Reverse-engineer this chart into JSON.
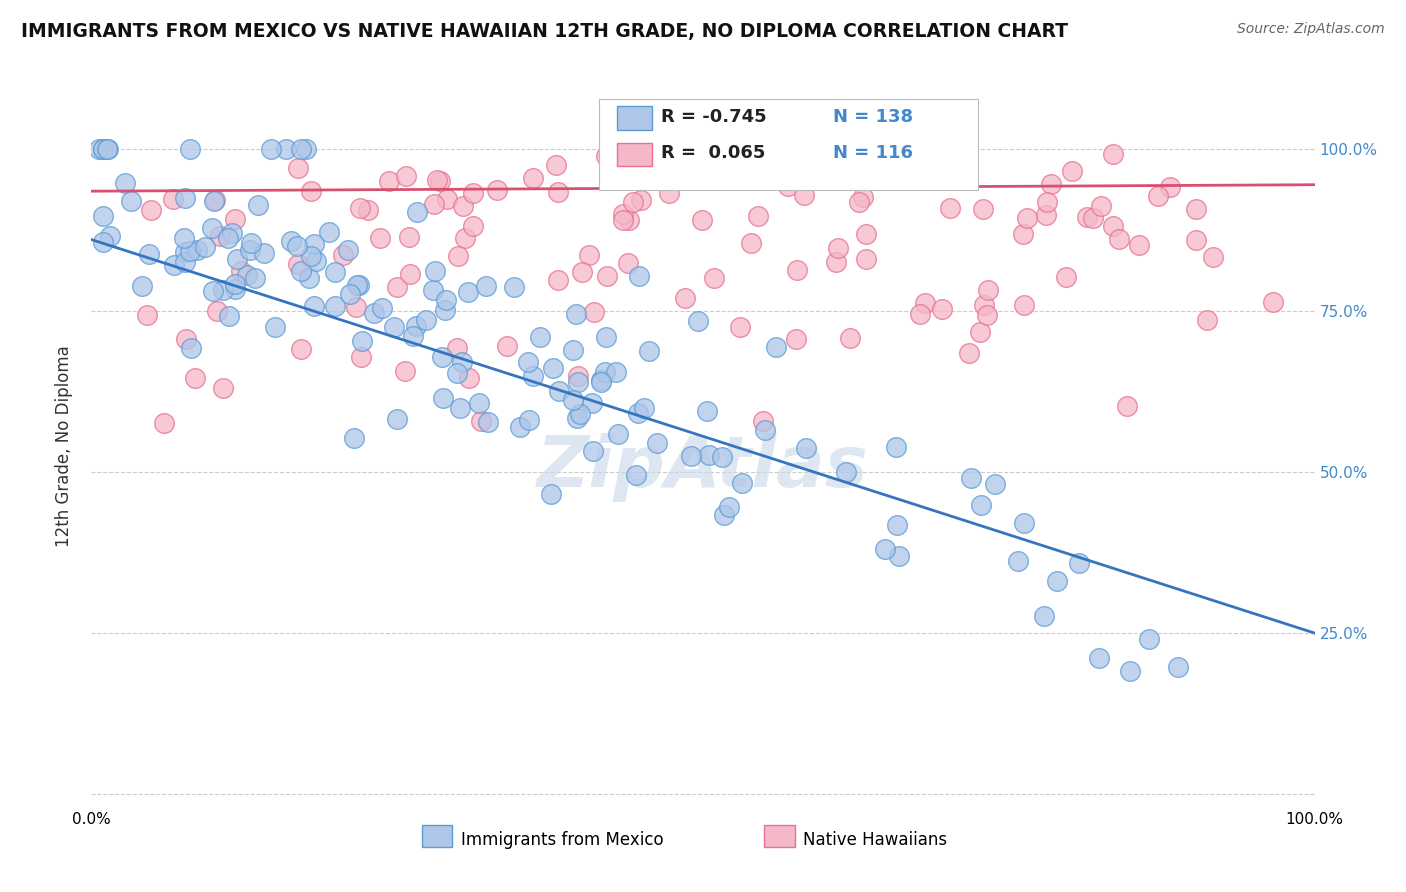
{
  "title": "IMMIGRANTS FROM MEXICO VS NATIVE HAWAIIAN 12TH GRADE, NO DIPLOMA CORRELATION CHART",
  "source": "Source: ZipAtlas.com",
  "ylabel": "12th Grade, No Diploma",
  "xlim": [
    0.0,
    1.0
  ],
  "ylim": [
    -0.02,
    1.1
  ],
  "legend_entries": [
    {
      "label": "Immigrants from Mexico",
      "face_color": "#aec6e8",
      "edge_color": "#5b9bd5",
      "R": -0.745,
      "N": 138
    },
    {
      "label": "Native Hawaiians",
      "face_color": "#f4b8c8",
      "edge_color": "#e87090",
      "R": 0.065,
      "N": 116
    }
  ],
  "trend_blue": "#3575c0",
  "trend_pink": "#d85070",
  "watermark": "ZipAtlas",
  "watermark_color": "#c8d8e8",
  "background_color": "#ffffff",
  "grid_color": "#cccccc",
  "ytick_positions": [
    0.0,
    0.25,
    0.5,
    0.75,
    1.0
  ],
  "ytick_labels": [
    "",
    "25.0%",
    "50.0%",
    "75.0%",
    "100.0%"
  ],
  "ytick_color": "#4488cc",
  "xtick_left_label": "0.0%",
  "xtick_right_label": "100.0%",
  "seed": 7
}
